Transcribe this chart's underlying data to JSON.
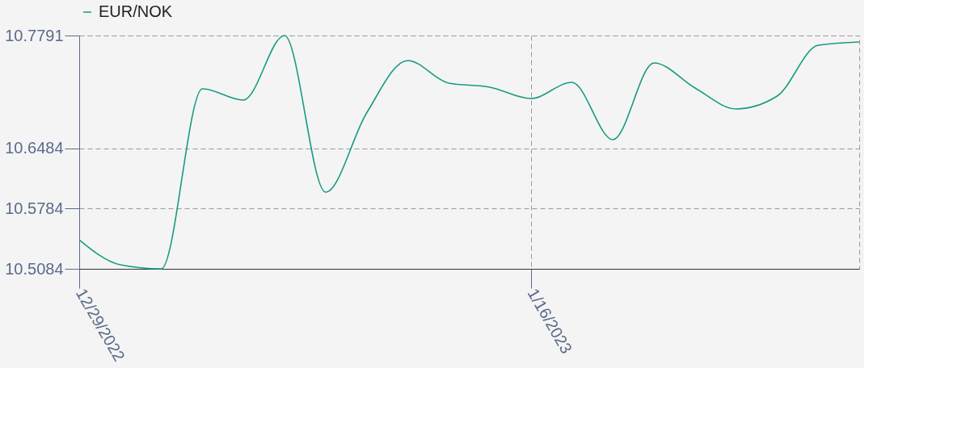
{
  "chart_data": {
    "type": "line",
    "categories": [
      "12/29/2022",
      null,
      null,
      null,
      null,
      null,
      null,
      null,
      null,
      null,
      null,
      "1/16/2023",
      null,
      null,
      null,
      null,
      null,
      null,
      null,
      null
    ],
    "series": [
      {
        "name": "EUR/NOK",
        "color": "#1a9a82",
        "values": [
          10.5421,
          10.5131,
          10.5084,
          10.7173,
          10.7042,
          10.7791,
          10.5974,
          10.6892,
          10.7501,
          10.7238,
          10.7192,
          10.706,
          10.7248,
          10.6583,
          10.7473,
          10.7182,
          10.6939,
          10.7088,
          10.7678,
          10.7716
        ]
      }
    ],
    "ylim": [
      10.5084,
      10.7791
    ],
    "yticks": [
      10.5084,
      10.5784,
      10.6484,
      10.7791
    ],
    "grid": true,
    "legend": "top",
    "line_style": "solid"
  }
}
